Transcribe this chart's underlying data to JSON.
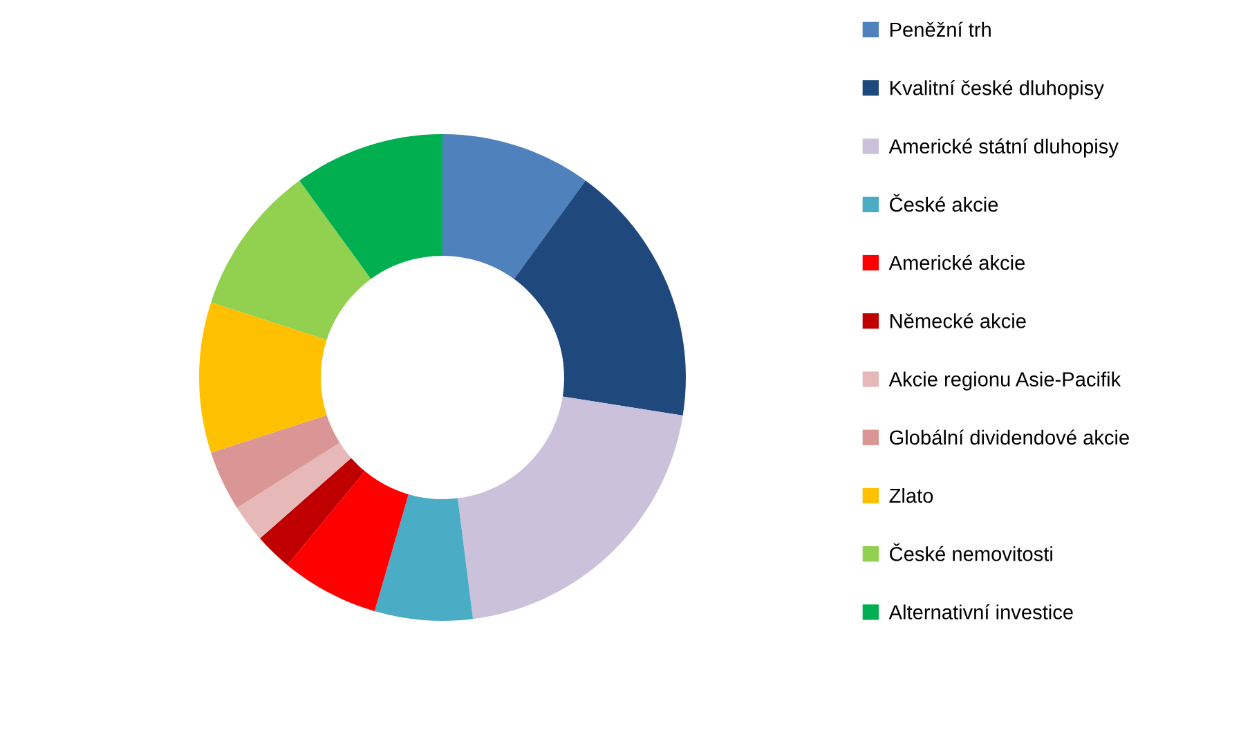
{
  "chart_data": {
    "type": "donut",
    "categories": [
      "Peněžní trh",
      "Kvalitní české dluhopisy",
      "Americké státní dluhopisy",
      "České akcie",
      "Americké akcie",
      "Německé akcie",
      "Akcie regionu Asie-Pacifik",
      "Globální dividendové akcie",
      "Zlato",
      "České nemovitosti",
      "Alternativní investice"
    ],
    "values": [
      10,
      17.5,
      20.5,
      6.5,
      6.5,
      2.5,
      2.5,
      4,
      10,
      10,
      10
    ],
    "colors": [
      "#4f81bd",
      "#1f497d",
      "#ccc1da",
      "#4bacc6",
      "#ff0000",
      "#c00000",
      "#e6b9b8",
      "#d99694",
      "#ffc000",
      "#92d050",
      "#00b050"
    ],
    "legend": "right"
  }
}
